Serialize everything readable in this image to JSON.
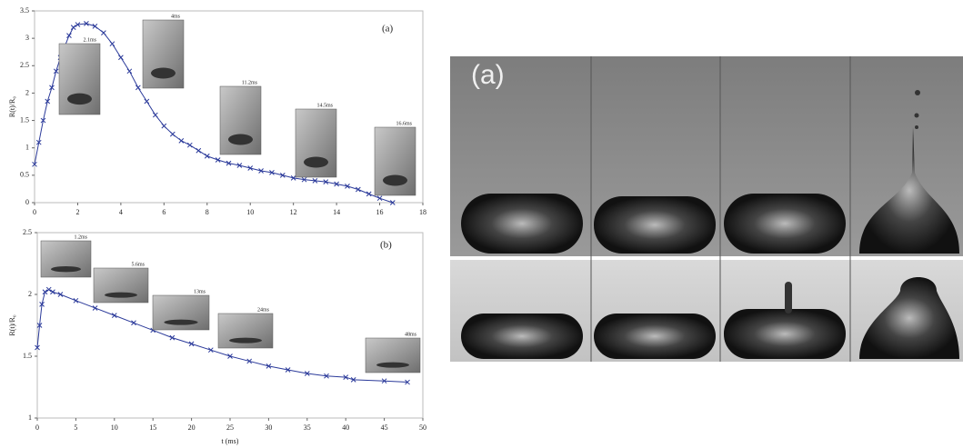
{
  "chart_data": [
    {
      "type": "line",
      "annotation": "(a)",
      "ylabel": "R(t)/R₀",
      "xlim": [
        0,
        18
      ],
      "xticks": [
        0,
        2,
        4,
        6,
        8,
        10,
        12,
        14,
        16,
        18
      ],
      "ylim": [
        0,
        3.5
      ],
      "yticks": [
        0,
        0.5,
        1,
        1.5,
        2,
        2.5,
        3,
        3.5
      ],
      "insets": [
        "2.1ms",
        "4ms",
        "11.2ms",
        "14.5ms",
        "16.6ms"
      ],
      "series": [
        {
          "color": "#2b3a9a",
          "x": [
            0,
            0.2,
            0.4,
            0.6,
            0.8,
            1.0,
            1.2,
            1.4,
            1.6,
            1.8,
            2.0,
            2.4,
            2.8,
            3.2,
            3.6,
            4,
            4.4,
            4.8,
            5.2,
            5.6,
            6,
            6.4,
            6.8,
            7.2,
            7.6,
            8,
            8.5,
            9,
            9.5,
            10,
            10.5,
            11,
            11.5,
            12,
            12.5,
            13,
            13.5,
            14,
            14.5,
            15,
            15.5,
            16,
            16.6
          ],
          "values": [
            0.7,
            1.1,
            1.5,
            1.85,
            2.1,
            2.4,
            2.65,
            2.85,
            3.05,
            3.2,
            3.25,
            3.27,
            3.22,
            3.1,
            2.9,
            2.65,
            2.4,
            2.1,
            1.85,
            1.6,
            1.4,
            1.25,
            1.13,
            1.05,
            0.95,
            0.85,
            0.78,
            0.72,
            0.68,
            0.63,
            0.58,
            0.55,
            0.5,
            0.45,
            0.42,
            0.4,
            0.38,
            0.34,
            0.3,
            0.24,
            0.16,
            0.08,
            0
          ]
        }
      ]
    },
    {
      "type": "line",
      "annotation": "(b)",
      "ylabel": "R(t)/R₀",
      "xlabel": "t (ms)",
      "xlim": [
        0,
        50
      ],
      "xticks": [
        0,
        5,
        10,
        15,
        20,
        25,
        30,
        35,
        40,
        45,
        50
      ],
      "ylim": [
        1,
        2.5
      ],
      "yticks": [
        1,
        1.5,
        2,
        2.5
      ],
      "insets": [
        "1.2ms",
        "5.6ms",
        "13ms",
        "24ms",
        "48ms"
      ],
      "series": [
        {
          "color": "#2b3a9a",
          "x": [
            0,
            0.3,
            0.6,
            1,
            1.5,
            2,
            3,
            5,
            7.5,
            10,
            12.5,
            15,
            17.5,
            20,
            22.5,
            25,
            27.5,
            30,
            32.5,
            35,
            37.5,
            40,
            41,
            45,
            48
          ],
          "values": [
            1.57,
            1.75,
            1.92,
            2.02,
            2.04,
            2.02,
            2.0,
            1.95,
            1.89,
            1.83,
            1.77,
            1.71,
            1.65,
            1.6,
            1.55,
            1.5,
            1.46,
            1.42,
            1.39,
            1.36,
            1.34,
            1.33,
            1.31,
            1.3,
            1.29
          ]
        }
      ]
    }
  ],
  "photo_panel": {
    "label": "(a)"
  }
}
